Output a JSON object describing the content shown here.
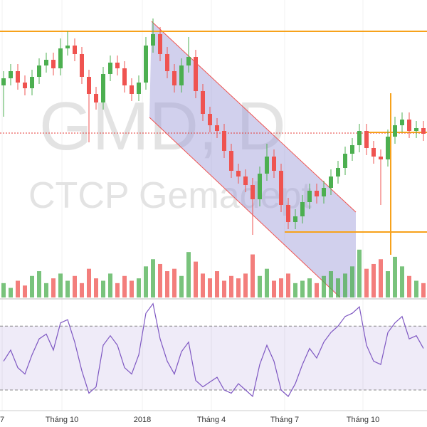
{
  "chart_data": {
    "type": "candlestick",
    "watermark_symbol": "GMD, D",
    "watermark_name": "CTCP Gemadept",
    "x": [
      0,
      1,
      2,
      3,
      4,
      5,
      6,
      7,
      8,
      9,
      10,
      11,
      12,
      13,
      14,
      15,
      16,
      17,
      18,
      19,
      20,
      21,
      22,
      23,
      24,
      25,
      26,
      27,
      28,
      29,
      30,
      31,
      32,
      33,
      34,
      35,
      36,
      37,
      38,
      39,
      40,
      41,
      42,
      43,
      44,
      45,
      46,
      47,
      48,
      49,
      50,
      51,
      52,
      53,
      54,
      55,
      56,
      57,
      58,
      59
    ],
    "xlim": [
      -0.5,
      59.5
    ],
    "xticks": [
      {
        "value": -0.2,
        "label": "7"
      },
      {
        "value": 8.2,
        "label": "Tháng 10"
      },
      {
        "value": 19.5,
        "label": "2018"
      },
      {
        "value": 29.2,
        "label": "Tháng 4"
      },
      {
        "value": 39.5,
        "label": "Tháng 7"
      },
      {
        "value": 50.5,
        "label": "Tháng 10"
      }
    ],
    "ylim": [
      9,
      30
    ],
    "up_color": "#4caf50",
    "down_color": "#ef5350",
    "open": [
      24.0,
      24.5,
      25.0,
      24.2,
      23.8,
      24.6,
      25.4,
      25.8,
      25.2,
      26.6,
      26.8,
      26.2,
      24.6,
      23.4,
      22.8,
      24.8,
      25.6,
      25.2,
      24.0,
      23.4,
      24.2,
      26.8,
      27.6,
      26.2,
      25.0,
      24.0,
      25.4,
      26.0,
      23.6,
      22.0,
      21.2,
      20.8,
      19.4,
      18.0,
      17.6,
      17.0,
      16.0,
      17.8,
      19.0,
      18.0,
      15.6,
      14.4,
      14.8,
      15.8,
      16.6,
      16.2,
      16.8,
      17.6,
      18.2,
      19.2,
      19.8,
      20.8,
      19.6,
      19.0,
      18.8,
      20.4,
      21.2,
      21.6,
      20.8,
      21.0
    ],
    "high": [
      25.0,
      25.5,
      25.5,
      24.7,
      25.1,
      25.9,
      26.3,
      26.3,
      27.3,
      27.8,
      27.3,
      26.7,
      25.1,
      23.9,
      25.3,
      26.1,
      26.1,
      25.7,
      24.5,
      24.7,
      27.4,
      28.7,
      28.1,
      26.7,
      25.5,
      25.9,
      27.4,
      26.5,
      24.1,
      22.5,
      21.7,
      21.3,
      19.9,
      18.5,
      18.1,
      17.5,
      18.3,
      19.9,
      19.5,
      18.5,
      16.1,
      15.3,
      16.3,
      17.1,
      17.1,
      17.3,
      18.1,
      18.7,
      19.7,
      20.3,
      21.3,
      21.3,
      20.1,
      19.5,
      20.9,
      21.8,
      22.1,
      22.1,
      21.5,
      21.5
    ],
    "low": [
      21.8,
      24.0,
      23.7,
      23.3,
      23.3,
      24.1,
      24.9,
      24.7,
      24.7,
      26.1,
      25.7,
      24.1,
      20.0,
      22.3,
      22.3,
      24.3,
      24.7,
      23.5,
      22.9,
      22.9,
      23.7,
      26.3,
      25.7,
      24.5,
      23.5,
      23.5,
      24.9,
      23.1,
      21.5,
      20.7,
      20.3,
      18.9,
      17.5,
      17.1,
      16.5,
      13.5,
      15.5,
      17.3,
      17.5,
      15.1,
      13.9,
      13.9,
      14.3,
      15.3,
      15.7,
      15.7,
      16.3,
      17.1,
      17.7,
      18.7,
      19.3,
      19.1,
      18.5,
      15.6,
      18.3,
      19.9,
      20.7,
      20.3,
      20.3,
      20.1
    ],
    "close": [
      24.5,
      25.0,
      24.2,
      23.8,
      24.6,
      25.4,
      25.8,
      25.2,
      26.6,
      26.8,
      26.2,
      24.6,
      23.4,
      22.8,
      24.8,
      25.6,
      25.2,
      24.0,
      23.4,
      24.2,
      26.8,
      27.6,
      26.2,
      25.0,
      24.0,
      25.4,
      26.0,
      23.6,
      22.0,
      21.2,
      20.8,
      19.4,
      18.0,
      17.6,
      17.0,
      16.0,
      17.8,
      19.0,
      18.0,
      15.6,
      14.4,
      14.8,
      15.8,
      16.6,
      16.2,
      16.8,
      17.6,
      18.2,
      19.2,
      19.8,
      20.8,
      19.6,
      19.0,
      18.8,
      20.4,
      21.2,
      21.6,
      20.8,
      21.0,
      20.6
    ],
    "volume": {
      "ylim": [
        0,
        5
      ],
      "values": [
        0.6,
        0.4,
        0.7,
        0.5,
        0.9,
        1.1,
        0.6,
        0.8,
        1.0,
        0.7,
        0.9,
        0.6,
        1.2,
        0.8,
        0.7,
        1.0,
        0.6,
        0.9,
        0.7,
        0.8,
        1.3,
        1.6,
        1.4,
        1.1,
        1.2,
        0.9,
        1.9,
        1.5,
        1.0,
        0.8,
        1.1,
        0.7,
        0.9,
        0.8,
        1.0,
        1.8,
        0.9,
        1.2,
        0.7,
        0.8,
        1.0,
        0.6,
        0.7,
        0.8,
        0.6,
        0.9,
        1.1,
        0.8,
        1.0,
        1.3,
        2.0,
        1.2,
        1.4,
        1.6,
        1.1,
        1.7,
        1.3,
        0.9,
        0.7,
        0.6
      ]
    },
    "rsi": {
      "ylim": [
        18,
        87
      ],
      "levels": [
        30,
        70
      ],
      "color": "#7e57c2",
      "values": [
        48,
        55,
        44,
        40,
        52,
        62,
        65,
        55,
        72,
        74,
        60,
        42,
        28,
        32,
        58,
        64,
        58,
        44,
        40,
        52,
        78,
        84,
        62,
        48,
        40,
        54,
        60,
        36,
        32,
        35,
        38,
        30,
        28,
        34,
        30,
        26,
        46,
        58,
        48,
        30,
        26,
        34,
        46,
        56,
        50,
        60,
        66,
        70,
        76,
        78,
        82,
        58,
        48,
        46,
        66,
        72,
        76,
        62,
        64,
        56
      ]
    }
  }
}
